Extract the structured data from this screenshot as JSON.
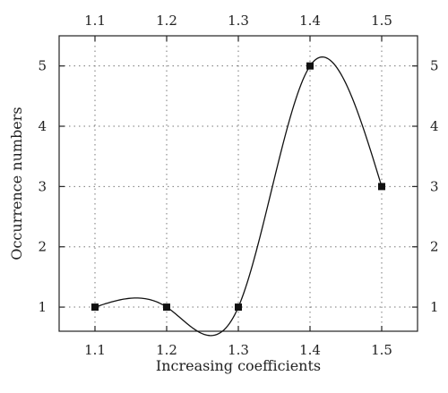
{
  "chart_data": {
    "type": "line",
    "title": "",
    "xlabel": "Increasing coefficients",
    "ylabel": "Occurrence numbers",
    "x": [
      1.1,
      1.2,
      1.3,
      1.4,
      1.5
    ],
    "series": [
      {
        "values": [
          1,
          1,
          1,
          5,
          3
        ]
      }
    ],
    "x_ticks": [
      "1.1",
      "1.2",
      "1.3",
      "1.4",
      "1.5"
    ],
    "y_ticks": [
      "1",
      "2",
      "3",
      "4",
      "5"
    ],
    "xlim": [
      1.05,
      1.55
    ],
    "ylim": [
      0.6,
      5.5
    ],
    "grid": true,
    "grid_style": "dotted",
    "mirrored_axes": true,
    "curve": "smooth spline",
    "marker": "square",
    "line_color": "#111111",
    "marker_color": "#111111"
  }
}
